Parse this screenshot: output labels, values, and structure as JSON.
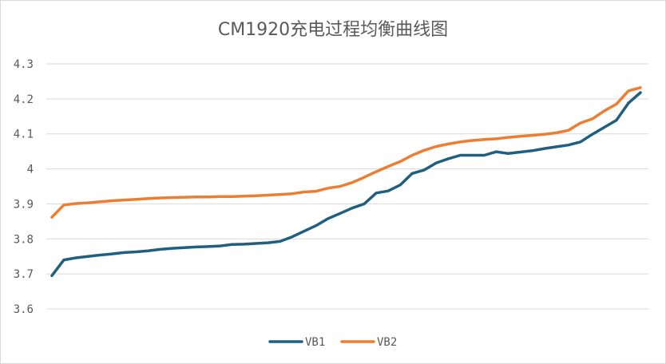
{
  "chart_data": {
    "type": "line",
    "title": "CM1920充电过程均衡曲线图",
    "xlabel": "",
    "ylabel": "",
    "ylim": [
      3.6,
      4.3
    ],
    "yticks": [
      "3.6",
      "3.7",
      "3.8",
      "3.9",
      "4",
      "4.1",
      "4.2",
      "4.3"
    ],
    "grid": true,
    "legend": "bottom",
    "series": [
      {
        "name": "VB1",
        "color": "#1f5f7f",
        "values": [
          3.695,
          3.74,
          3.746,
          3.75,
          3.754,
          3.757,
          3.761,
          3.763,
          3.766,
          3.77,
          3.773,
          3.775,
          3.777,
          3.778,
          3.78,
          3.784,
          3.785,
          3.787,
          3.789,
          3.793,
          3.806,
          3.822,
          3.838,
          3.858,
          3.873,
          3.888,
          3.9,
          3.931,
          3.937,
          3.954,
          3.987,
          3.997,
          4.017,
          4.029,
          4.039,
          4.039,
          4.039,
          4.049,
          4.044,
          4.048,
          4.052,
          4.058,
          4.063,
          4.068,
          4.077,
          4.099,
          4.119,
          4.139,
          4.188,
          4.218
        ]
      },
      {
        "name": "VB2",
        "color": "#ed7d31",
        "values": [
          3.862,
          3.897,
          3.901,
          3.903,
          3.906,
          3.909,
          3.911,
          3.913,
          3.915,
          3.917,
          3.918,
          3.919,
          3.92,
          3.92,
          3.921,
          3.921,
          3.922,
          3.923,
          3.925,
          3.927,
          3.929,
          3.934,
          3.936,
          3.945,
          3.95,
          3.961,
          3.976,
          3.992,
          4.007,
          4.021,
          4.039,
          4.053,
          4.064,
          4.071,
          4.077,
          4.081,
          4.084,
          4.086,
          4.09,
          4.093,
          4.096,
          4.099,
          4.103,
          4.11,
          4.131,
          4.143,
          4.166,
          4.185,
          4.223,
          4.232
        ]
      }
    ]
  }
}
